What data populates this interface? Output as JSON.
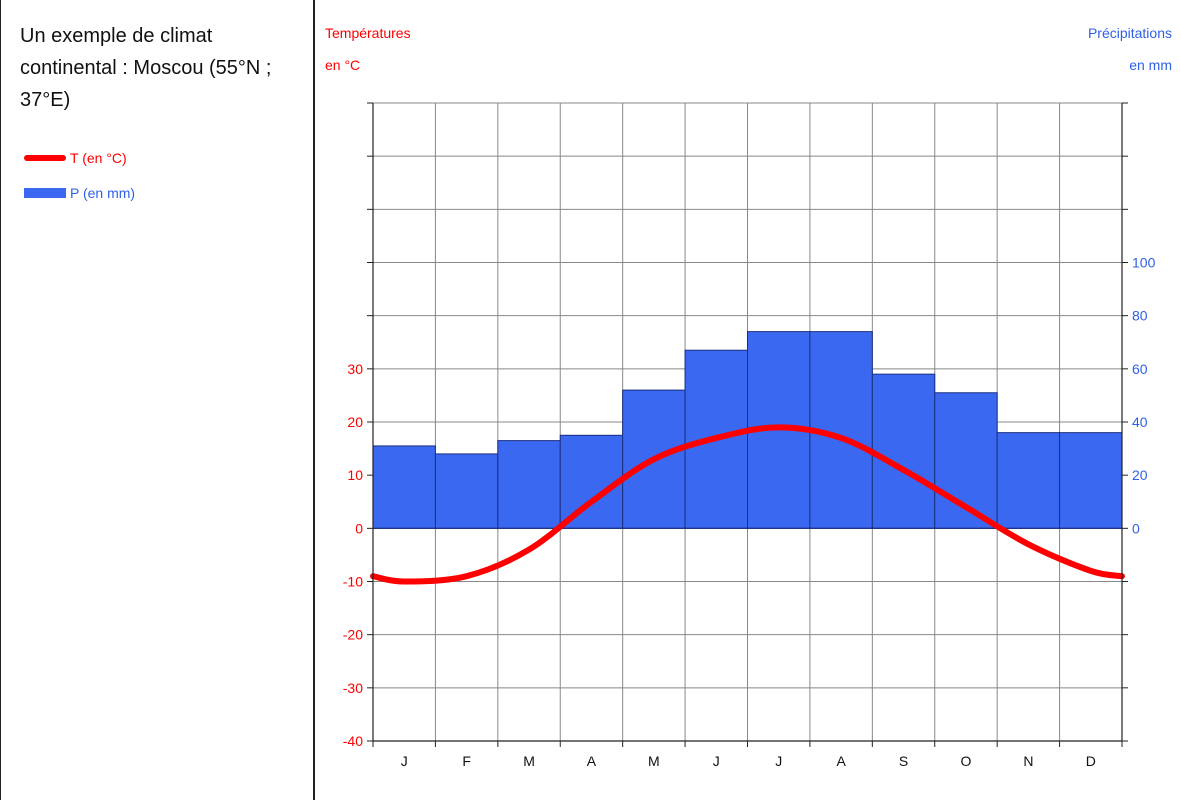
{
  "title": "Un exemple de climat continental : Moscou (55°N ; 37°E)",
  "legend": {
    "temp": "T (en °C)",
    "precip": "P (en mm)"
  },
  "colors": {
    "temperature": "#ff0000",
    "precipitation": "#3a68f0",
    "precip_text": "#2f5fe8",
    "grid": "#888888"
  },
  "chart_data": {
    "type": "bar",
    "categories": [
      "J",
      "F",
      "M",
      "A",
      "M",
      "J",
      "J",
      "A",
      "S",
      "O",
      "N",
      "D"
    ],
    "left_axis_title_line1": "Températures",
    "left_axis_title_line2": "en °C",
    "right_axis_title_line1": "Précipitations",
    "right_axis_title_line2": "en mm",
    "y_left_ticks": [
      30,
      20,
      10,
      0,
      -10,
      -20,
      -30,
      -40
    ],
    "y_left_range": [
      -40,
      80
    ],
    "y_right_ticks": [
      100,
      80,
      60,
      40,
      20,
      0
    ],
    "y_right_range": [
      -80,
      160
    ],
    "series": [
      {
        "name": "P (en mm)",
        "type": "bar",
        "axis": "right",
        "values": [
          31,
          28,
          33,
          35,
          52,
          67,
          74,
          74,
          58,
          51,
          36,
          36
        ]
      },
      {
        "name": "T (en °C)",
        "type": "line",
        "axis": "left",
        "values": [
          -10,
          -9,
          -4,
          5,
          13,
          17,
          19,
          17,
          11,
          4,
          -3,
          -8
        ]
      }
    ],
    "grid": true
  }
}
